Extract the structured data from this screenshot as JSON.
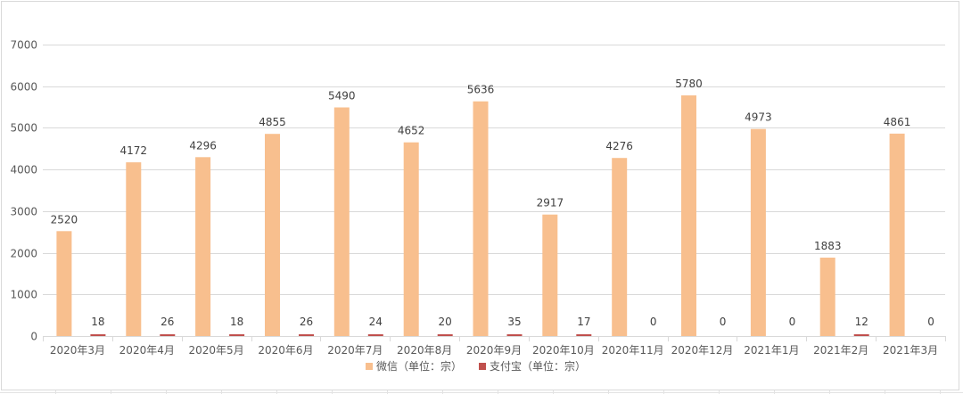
{
  "colors": {
    "series_wechat": "#F8BF8E",
    "series_alipay": "#C0504D",
    "gridline": "#D9D9D9",
    "axis_text": "#595959",
    "label_text": "#404040"
  },
  "chart_data": {
    "type": "bar",
    "title": "",
    "xlabel": "",
    "ylabel": "",
    "ylim": [
      0,
      7000
    ],
    "yticks": [
      0,
      1000,
      2000,
      3000,
      4000,
      5000,
      6000,
      7000
    ],
    "grid": true,
    "legend_position": "bottom",
    "categories": [
      "2020年3月",
      "2020年4月",
      "2020年5月",
      "2020年6月",
      "2020年7月",
      "2020年8月",
      "2020年9月",
      "2020年10月",
      "2020年11月",
      "2020年12月",
      "2021年1月",
      "2021年2月",
      "2021年3月"
    ],
    "series": [
      {
        "name": "微信（单位：宗）",
        "color": "#F8BF8E",
        "values": [
          2520,
          4172,
          4296,
          4855,
          5490,
          4652,
          5636,
          2917,
          4276,
          5780,
          4973,
          1883,
          4861
        ]
      },
      {
        "name": "支付宝（单位：宗）",
        "color": "#C0504D",
        "values": [
          18,
          26,
          18,
          26,
          24,
          20,
          35,
          17,
          0,
          0,
          0,
          12,
          0
        ]
      }
    ]
  }
}
